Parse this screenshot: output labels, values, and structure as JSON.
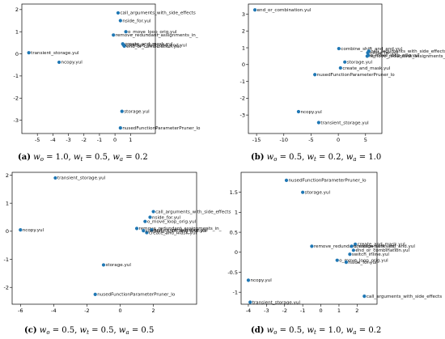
{
  "point_color": "#1f77b4",
  "chart_data": [
    {
      "type": "scatter",
      "panel": "a",
      "caption": "(a) w_o = 1.0, w_t = 0.5, w_a = 0.2",
      "caption_parts": {
        "label": "(a)",
        "wo": "1.0",
        "wt": "0.5",
        "wa": "0.2"
      },
      "xlim": [
        -6.0,
        2.6
      ],
      "ylim": [
        -3.6,
        2.25
      ],
      "xticks": [
        -5,
        -4,
        -3,
        -2,
        -1,
        0,
        1
      ],
      "yticks": [
        -3,
        -2,
        -1,
        0,
        1,
        2
      ],
      "points": [
        {
          "x": -5.55,
          "y": 0.05,
          "label": "transient_storage.yul"
        },
        {
          "x": -3.6,
          "y": -0.38,
          "label": "ncopy.yul"
        },
        {
          "x": 0.2,
          "y": 1.85,
          "label": "call_arguments_with_side_effects"
        },
        {
          "x": 0.35,
          "y": 1.5,
          "label": "nside_for.yul"
        },
        {
          "x": 0.7,
          "y": 1.0,
          "label": "o_move_loop_orig.yul"
        },
        {
          "x": -0.1,
          "y": 0.85,
          "label": "remove_redundant_assignments_in_"
        },
        {
          "x": 0.5,
          "y": 0.45,
          "label": "create_and_mask.yul"
        },
        {
          "x": 0.55,
          "y": 0.4,
          "label": "combine_shift_and_and.yul"
        },
        {
          "x": 0.6,
          "y": 0.35,
          "label": "end_or_combination.yul"
        },
        {
          "x": 0.45,
          "y": -2.6,
          "label": "storage.yul"
        },
        {
          "x": 0.35,
          "y": -3.35,
          "label": "nusedFunctionParameterPruner_lo"
        }
      ]
    },
    {
      "type": "scatter",
      "panel": "b",
      "caption": "(b) w_o = 0.5, w_t = 0.2, w_a = 1.0",
      "caption_parts": {
        "label": "(b)",
        "wo": "0.5",
        "wt": "0.2",
        "wa": "1.0"
      },
      "xlim": [
        -16.5,
        8.0
      ],
      "ylim": [
        -4.1,
        3.6
      ],
      "xticks": [
        -15,
        -10,
        -5,
        0,
        5
      ],
      "yticks": [
        -3,
        -2,
        -1,
        0,
        1,
        2,
        3
      ],
      "points": [
        {
          "x": -15.3,
          "y": 3.25,
          "label": "end_or_combination.yul"
        },
        {
          "x": 0.1,
          "y": 0.95,
          "label": "combine_shift_and_and.yul"
        },
        {
          "x": 5.6,
          "y": 0.8,
          "label": "call_arguments_with_side_effects"
        },
        {
          "x": 5.4,
          "y": 0.7,
          "label": "nside_for.yul"
        },
        {
          "x": 5.3,
          "y": 0.5,
          "label": "remove_redundant_assignments_in_"
        },
        {
          "x": 5.5,
          "y": 0.55,
          "label": "o_move_loop_orig.yul"
        },
        {
          "x": 1.2,
          "y": 0.15,
          "label": "storage.yul"
        },
        {
          "x": 0.4,
          "y": -0.2,
          "label": "create_and_mask.yul"
        },
        {
          "x": -4.3,
          "y": -0.6,
          "label": "nusedFunctionParameterPruner_lo"
        },
        {
          "x": -7.3,
          "y": -2.8,
          "label": "ncopy.yul"
        },
        {
          "x": -3.6,
          "y": -3.45,
          "label": "transient_storage.yul"
        }
      ]
    },
    {
      "type": "scatter",
      "panel": "c",
      "caption": "(c) w_o = 0.5, w_t = 0.5, w_a = 0.5",
      "caption_parts": {
        "label": "(c)",
        "wo": "0.5",
        "wt": "0.5",
        "wa": "0.5"
      },
      "xlim": [
        -6.5,
        4.6
      ],
      "ylim": [
        -2.6,
        2.1
      ],
      "xticks": [
        -6,
        -4,
        -2,
        0,
        2
      ],
      "yticks": [
        -2,
        -1,
        0,
        1,
        2
      ],
      "points": [
        {
          "x": -3.9,
          "y": 1.9,
          "label": "transient_storage.yul"
        },
        {
          "x": -6.0,
          "y": 0.05,
          "label": "ncopy.yul"
        },
        {
          "x": 2.0,
          "y": 0.7,
          "label": "call_arguments_with_side_effects"
        },
        {
          "x": 1.8,
          "y": 0.5,
          "label": "nside_for.yul"
        },
        {
          "x": 1.5,
          "y": 0.35,
          "label": "o_move_loop_orig.yul"
        },
        {
          "x": 1.0,
          "y": 0.1,
          "label": "remove_redundant_assignments_in_"
        },
        {
          "x": 1.9,
          "y": 0.05,
          "label": "end_or_combination.yul"
        },
        {
          "x": 1.6,
          "y": -0.05,
          "label": "create_and_mask.yul"
        },
        {
          "x": 1.4,
          "y": 0.02,
          "label": "combine_shift_and_and.yul"
        },
        {
          "x": -1.0,
          "y": -1.2,
          "label": "storage.yul"
        },
        {
          "x": -1.5,
          "y": -2.25,
          "label": "nusedFunctionParameterPruner_lo"
        }
      ]
    },
    {
      "type": "scatter",
      "panel": "d",
      "caption": "(d) w_o = 0.5, w_t = 1.0, w_a = 0.2",
      "caption_parts": {
        "label": "(d)",
        "wo": "0.5",
        "wt": "1.0",
        "wa": "0.2"
      },
      "xlim": [
        -4.4,
        3.1
      ],
      "ylim": [
        -1.3,
        2.0
      ],
      "xticks": [
        -4,
        -3,
        -2,
        -1,
        0,
        1,
        2
      ],
      "yticks": [
        -1.0,
        -0.5,
        0.0,
        0.5,
        1.0,
        1.5
      ],
      "points": [
        {
          "x": -1.9,
          "y": 1.8,
          "label": "nusedFunctionParameterPruner_lo"
        },
        {
          "x": -1.0,
          "y": 1.5,
          "label": "storage.yul"
        },
        {
          "x": -0.5,
          "y": 0.15,
          "label": "remove_redundant_assignments_in_"
        },
        {
          "x": 1.9,
          "y": 0.2,
          "label": "create_and_mask.yul"
        },
        {
          "x": 1.7,
          "y": 0.15,
          "label": "combine_shift_and_and.yul"
        },
        {
          "x": 1.8,
          "y": 0.05,
          "label": "end_or_combination.yul"
        },
        {
          "x": 1.6,
          "y": -0.05,
          "label": "switch_inline.yul"
        },
        {
          "x": 0.9,
          "y": -0.2,
          "label": "o_move_loop_orig.yul"
        },
        {
          "x": 1.4,
          "y": -0.25,
          "label": "nside_for.yul"
        },
        {
          "x": -4.0,
          "y": -0.7,
          "label": "ncopy.yul"
        },
        {
          "x": -3.9,
          "y": -1.25,
          "label": "transient_storage.yul"
        },
        {
          "x": 2.4,
          "y": -1.1,
          "label": "call_arguments_with_side_effects"
        }
      ]
    }
  ]
}
